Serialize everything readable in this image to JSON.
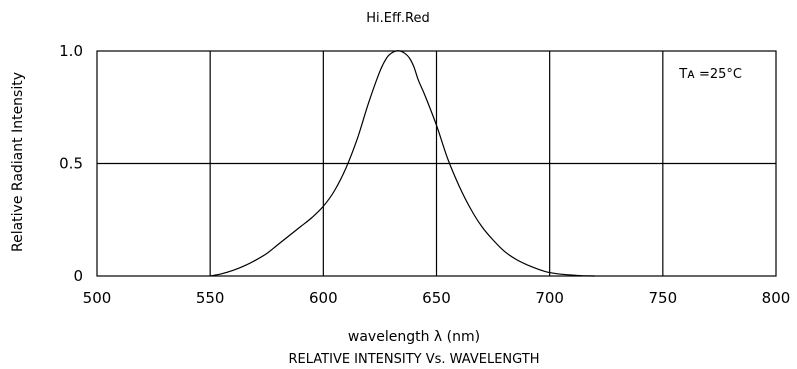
{
  "chart_data": {
    "type": "line",
    "title": "Hi.Eff.Red",
    "subtitle": "RELATIVE INTENSITY Vs. WAVELENGTH",
    "xlabel": "wavelength λ (nm)",
    "ylabel": "Relative Radiant Intensity",
    "annotation": "Tᴀ =25°C",
    "xlim": [
      500,
      800
    ],
    "ylim": [
      0,
      1.0
    ],
    "x_ticks": [
      "500",
      "550",
      "600",
      "650",
      "700",
      "750",
      "800"
    ],
    "y_ticks": [
      "0",
      "0.5",
      "1.0"
    ],
    "grid": true,
    "colors": {
      "line": "#000000",
      "grid": "#000000",
      "background": "#ffffff"
    },
    "series": [
      {
        "x": [
          550,
          555,
          560,
          565,
          570,
          575,
          580,
          585,
          590,
          595,
          600,
          605,
          610,
          615,
          620,
          625,
          628,
          630,
          632,
          634,
          636,
          638,
          640,
          642,
          645,
          650,
          655,
          660,
          665,
          670,
          675,
          680,
          685,
          690,
          695,
          700,
          705,
          710,
          715,
          720
        ],
        "values": [
          0.0,
          0.01,
          0.025,
          0.045,
          0.07,
          0.1,
          0.14,
          0.18,
          0.22,
          0.26,
          0.31,
          0.38,
          0.48,
          0.61,
          0.77,
          0.91,
          0.97,
          0.99,
          1.0,
          1.0,
          0.99,
          0.97,
          0.93,
          0.87,
          0.8,
          0.67,
          0.52,
          0.4,
          0.3,
          0.22,
          0.16,
          0.11,
          0.075,
          0.05,
          0.03,
          0.015,
          0.008,
          0.004,
          0.001,
          0.0
        ]
      }
    ]
  }
}
